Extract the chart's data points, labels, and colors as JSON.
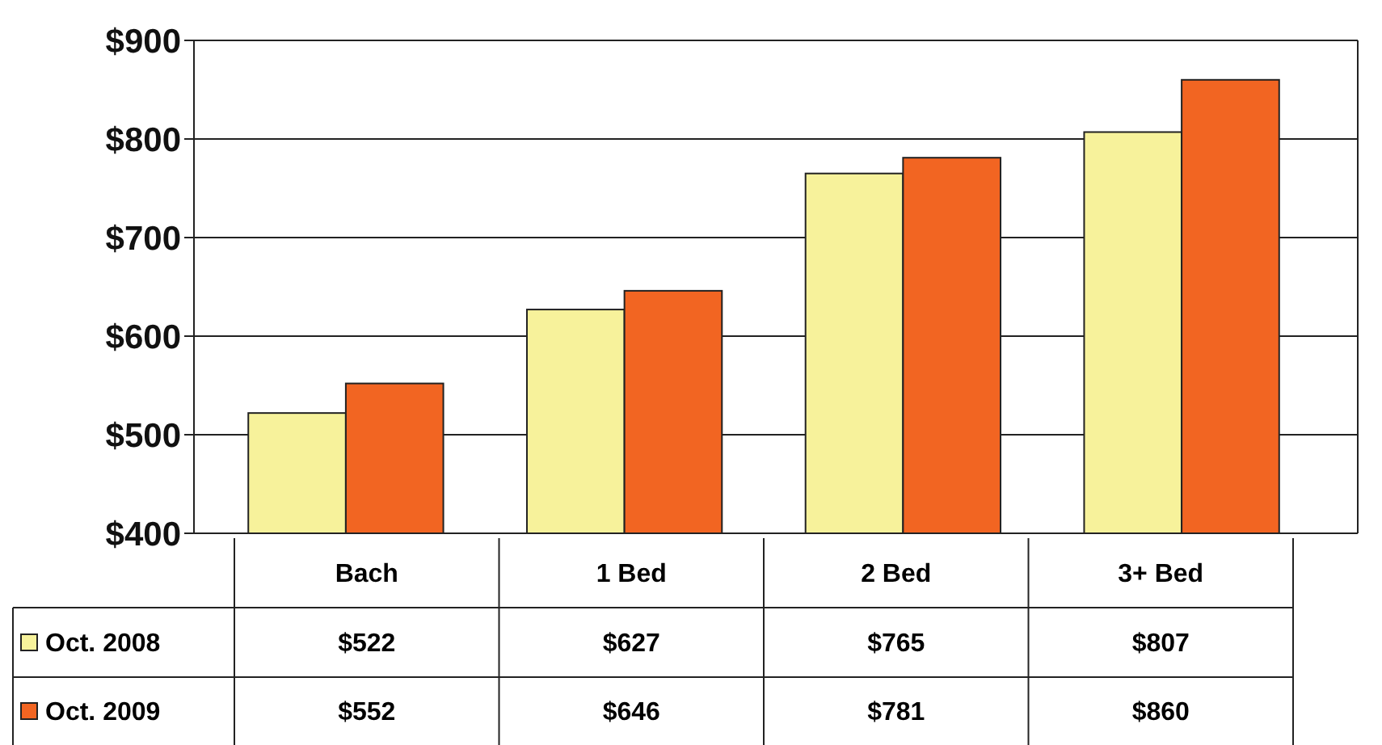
{
  "chart_data": {
    "type": "bar",
    "categories": [
      "Bach",
      "1 Bed",
      "2 Bed",
      "3+ Bed"
    ],
    "series": [
      {
        "name": "Oct. 2008",
        "color": "#f7f29b",
        "values": [
          522,
          627,
          765,
          807
        ],
        "value_labels": [
          "$522",
          "$627",
          "$765",
          "$807"
        ]
      },
      {
        "name": "Oct. 2009",
        "color": "#f26522",
        "values": [
          552,
          646,
          781,
          860
        ],
        "value_labels": [
          "$552",
          "$646",
          "$781",
          "$860"
        ]
      }
    ],
    "ylim": [
      400,
      900
    ],
    "yticks": [
      {
        "value": 400,
        "label": "$400"
      },
      {
        "value": 500,
        "label": "$500"
      },
      {
        "value": 600,
        "label": "$600"
      },
      {
        "value": 700,
        "label": "$700"
      },
      {
        "value": 800,
        "label": "$800"
      },
      {
        "value": 900,
        "label": "$900"
      }
    ],
    "grid": "y",
    "legend": "bottom left"
  }
}
